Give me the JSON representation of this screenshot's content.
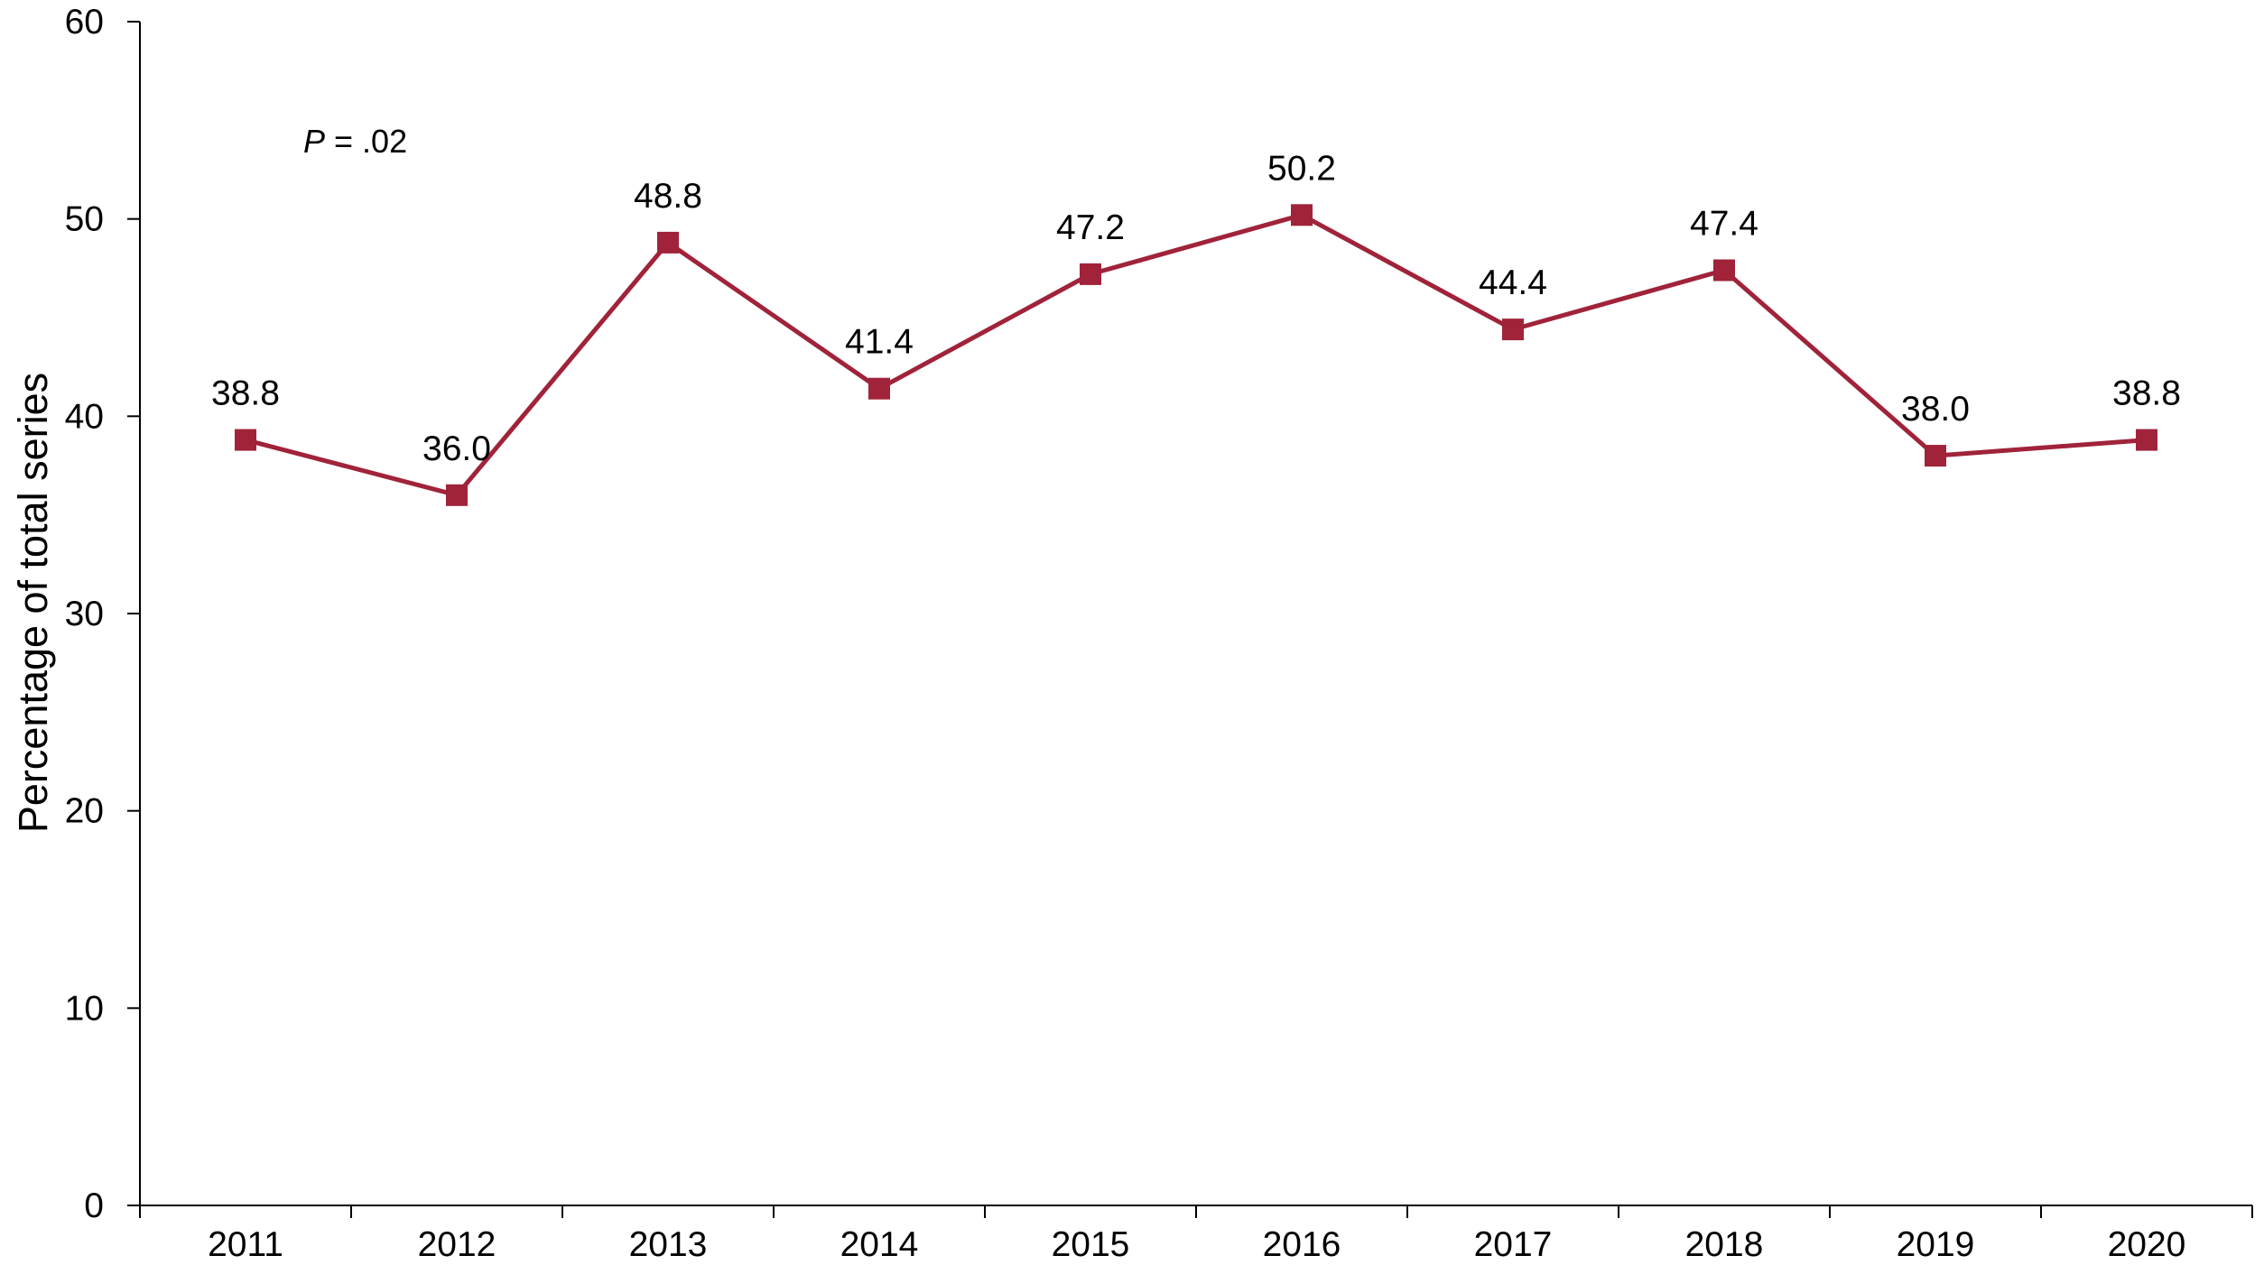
{
  "chart_data": {
    "type": "line",
    "title": "",
    "xlabel": "",
    "ylabel": "Percentage of total series",
    "categories": [
      "2011",
      "2012",
      "2013",
      "2014",
      "2015",
      "2016",
      "2017",
      "2018",
      "2019",
      "2020"
    ],
    "series": [
      {
        "values": [
          38.8,
          36.0,
          48.8,
          41.4,
          47.2,
          50.2,
          44.4,
          47.4,
          38.0,
          38.8
        ],
        "data_labels": [
          "38.8",
          "36.0",
          "48.8",
          "41.4",
          "47.2",
          "50.2",
          "44.4",
          "47.4",
          "38.0",
          "38.8"
        ],
        "color": "#A0233A",
        "marker": "square"
      }
    ],
    "ylim": [
      0,
      60
    ],
    "yticks": [
      0,
      10,
      20,
      30,
      40,
      50,
      60
    ],
    "grid": false,
    "legend": "none",
    "annotation": {
      "italic_part": "P",
      "rest": " = .02"
    }
  }
}
